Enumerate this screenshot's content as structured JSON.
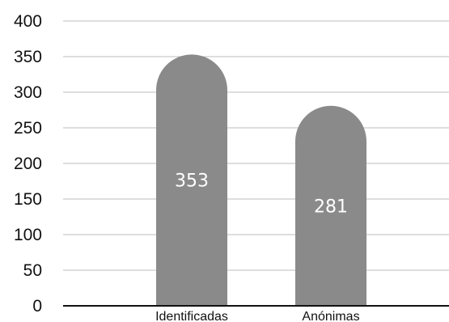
{
  "chart_data": {
    "type": "bar",
    "categories": [
      "Identificadas",
      "Anónimas"
    ],
    "values": [
      353,
      281
    ],
    "data_labels": [
      "353",
      "281"
    ],
    "title": "",
    "xlabel": "",
    "ylabel": "",
    "ylim": [
      0,
      400
    ],
    "yticks": [
      "0",
      "50",
      "100",
      "150",
      "200",
      "250",
      "300",
      "350",
      "400"
    ],
    "grid": true,
    "legend": "none",
    "colors": {
      "bar": "#8a8a8a",
      "grid": "#bdbdbd",
      "axis": "#111111",
      "label_text": "#ffffff"
    }
  }
}
